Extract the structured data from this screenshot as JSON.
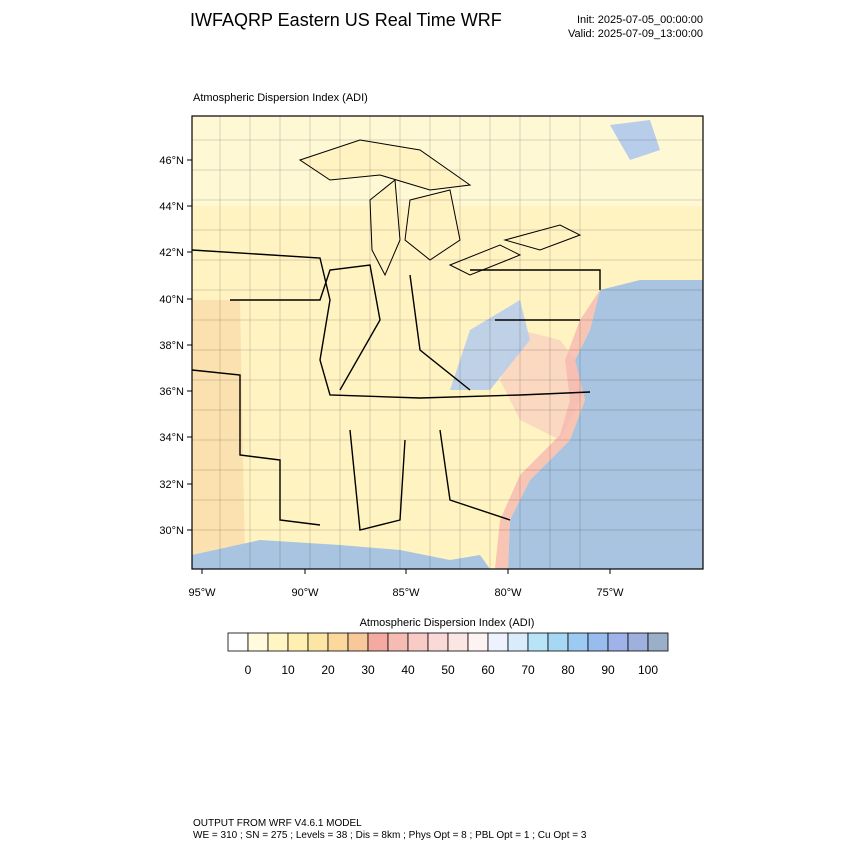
{
  "header": {
    "title": "IWFAQRP Eastern US Real Time WRF",
    "init": "Init: 2025-07-05_00:00:00",
    "valid": "Valid: 2025-07-09_13:00:00"
  },
  "map": {
    "subtitle": "Atmospheric Dispersion Index   (ADI)",
    "lat_labels": [
      "46°N",
      "44°N",
      "42°N",
      "40°N",
      "38°N",
      "36°N",
      "34°N",
      "32°N",
      "30°N"
    ],
    "lon_labels": [
      "95°W",
      "90°W",
      "85°W",
      "80°W",
      "75°W"
    ]
  },
  "colorbar": {
    "title": "Atmospheric Dispersion Index  (ADI)",
    "ticks": [
      0,
      10,
      20,
      30,
      40,
      50,
      60,
      70,
      80,
      90,
      100
    ],
    "colors": [
      "#ffffff",
      "#fffbdc",
      "#fff6c4",
      "#ffefb0",
      "#fde6a4",
      "#fbd99c",
      "#f8c89a",
      "#f4aaa0",
      "#f6bcb4",
      "#f8cbc6",
      "#fad9d6",
      "#fce6e4",
      "#fdf3f3",
      "#eef2ff",
      "#d8ecfc",
      "#b8e4f8",
      "#a6d8f6",
      "#9ccaf2",
      "#98bcee",
      "#a0b2ea",
      "#9eb0dc",
      "#9aafc8"
    ]
  },
  "footer": {
    "line1": "OUTPUT FROM WRF V4.6.1 MODEL",
    "line2": "WE = 310 ; SN = 275 ; Levels = 38 ; Dis = 8km ; Phys Opt = 8 ; PBL Opt = 1 ; Cu Opt = 3"
  }
}
